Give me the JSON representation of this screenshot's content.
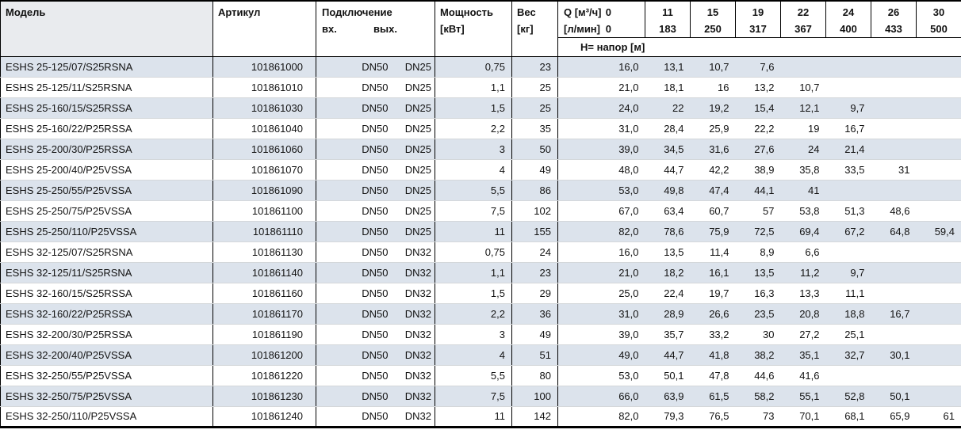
{
  "colors": {
    "row_shade": "#dce3ec",
    "header_model_shade": "#e9ebee",
    "row_line": "#d4d7da",
    "border": "#000000"
  },
  "table": {
    "columns": {
      "model": "Модель",
      "article": "Артикул",
      "connection": "Подключение",
      "inlet": "вх.",
      "outlet": "вых.",
      "power_l1": "Мощность",
      "power_l2": "[кВт]",
      "weight_l1": "Вес",
      "weight_l2": "[кг]",
      "q_m3h_label": "Q [м³/ч]",
      "q_lmin_label": "[л/мин]",
      "q_zero": "0",
      "head_row_label": "Н= напор [м]",
      "q_m3h": [
        "11",
        "15",
        "19",
        "22",
        "24",
        "26",
        "30"
      ],
      "q_lmin": [
        "183",
        "250",
        "317",
        "367",
        "400",
        "433",
        "500"
      ]
    },
    "rows": [
      {
        "model": "ESHS 25-125/07/S25RSNA",
        "article": "101861000",
        "inlet": "DN50",
        "outlet": "DN25",
        "power": "0,75",
        "weight": "23",
        "head": [
          "16,0",
          "13,1",
          "10,7",
          "7,6",
          "",
          "",
          "",
          ""
        ]
      },
      {
        "model": "ESHS 25-125/11/S25RSNA",
        "article": "101861010",
        "inlet": "DN50",
        "outlet": "DN25",
        "power": "1,1",
        "weight": "25",
        "head": [
          "21,0",
          "18,1",
          "16",
          "13,2",
          "10,7",
          "",
          "",
          ""
        ]
      },
      {
        "model": "ESHS 25-160/15/S25RSSA",
        "article": "101861030",
        "inlet": "DN50",
        "outlet": "DN25",
        "power": "1,5",
        "weight": "25",
        "head": [
          "24,0",
          "22",
          "19,2",
          "15,4",
          "12,1",
          "9,7",
          "",
          ""
        ]
      },
      {
        "model": "ESHS 25-160/22/P25RSSA",
        "article": "101861040",
        "inlet": "DN50",
        "outlet": "DN25",
        "power": "2,2",
        "weight": "35",
        "head": [
          "31,0",
          "28,4",
          "25,9",
          "22,2",
          "19",
          "16,7",
          "",
          ""
        ]
      },
      {
        "model": "ESHS 25-200/30/P25RSSA",
        "article": "101861060",
        "inlet": "DN50",
        "outlet": "DN25",
        "power": "3",
        "weight": "50",
        "head": [
          "39,0",
          "34,5",
          "31,6",
          "27,6",
          "24",
          "21,4",
          "",
          ""
        ]
      },
      {
        "model": "ESHS 25-200/40/P25VSSA",
        "article": "101861070",
        "inlet": "DN50",
        "outlet": "DN25",
        "power": "4",
        "weight": "49",
        "head": [
          "48,0",
          "44,7",
          "42,2",
          "38,9",
          "35,8",
          "33,5",
          "31",
          ""
        ]
      },
      {
        "model": "ESHS 25-250/55/P25VSSA",
        "article": "101861090",
        "inlet": "DN50",
        "outlet": "DN25",
        "power": "5,5",
        "weight": "86",
        "head": [
          "53,0",
          "49,8",
          "47,4",
          "44,1",
          "41",
          "",
          "",
          ""
        ]
      },
      {
        "model": "ESHS 25-250/75/P25VSSA",
        "article": "101861100",
        "inlet": "DN50",
        "outlet": "DN25",
        "power": "7,5",
        "weight": "102",
        "head": [
          "67,0",
          "63,4",
          "60,7",
          "57",
          "53,8",
          "51,3",
          "48,6",
          ""
        ]
      },
      {
        "model": "ESHS 25-250/110/P25VSSA",
        "article": "101861110",
        "inlet": "DN50",
        "outlet": "DN25",
        "power": "11",
        "weight": "155",
        "head": [
          "82,0",
          "78,6",
          "75,9",
          "72,5",
          "69,4",
          "67,2",
          "64,8",
          "59,4"
        ]
      },
      {
        "model": "ESHS 32-125/07/S25RSNA",
        "article": "101861130",
        "inlet": "DN50",
        "outlet": "DN32",
        "power": "0,75",
        "weight": "24",
        "head": [
          "16,0",
          "13,5",
          "11,4",
          "8,9",
          "6,6",
          "",
          "",
          ""
        ]
      },
      {
        "model": "ESHS 32-125/11/S25RSNA",
        "article": "101861140",
        "inlet": "DN50",
        "outlet": "DN32",
        "power": "1,1",
        "weight": "23",
        "head": [
          "21,0",
          "18,2",
          "16,1",
          "13,5",
          "11,2",
          "9,7",
          "",
          ""
        ]
      },
      {
        "model": "ESHS 32-160/15/S25RSSA",
        "article": "101861160",
        "inlet": "DN50",
        "outlet": "DN32",
        "power": "1,5",
        "weight": "29",
        "head": [
          "25,0",
          "22,4",
          "19,7",
          "16,3",
          "13,3",
          "11,1",
          "",
          ""
        ]
      },
      {
        "model": "ESHS 32-160/22/P25RSSA",
        "article": "101861170",
        "inlet": "DN50",
        "outlet": "DN32",
        "power": "2,2",
        "weight": "36",
        "head": [
          "31,0",
          "28,9",
          "26,6",
          "23,5",
          "20,8",
          "18,8",
          "16,7",
          ""
        ]
      },
      {
        "model": "ESHS 32-200/30/P25RSSA",
        "article": "101861190",
        "inlet": "DN50",
        "outlet": "DN32",
        "power": "3",
        "weight": "49",
        "head": [
          "39,0",
          "35,7",
          "33,2",
          "30",
          "27,2",
          "25,1",
          "",
          ""
        ]
      },
      {
        "model": "ESHS 32-200/40/P25VSSA",
        "article": "101861200",
        "inlet": "DN50",
        "outlet": "DN32",
        "power": "4",
        "weight": "51",
        "head": [
          "49,0",
          "44,7",
          "41,8",
          "38,2",
          "35,1",
          "32,7",
          "30,1",
          ""
        ]
      },
      {
        "model": "ESHS 32-250/55/P25VSSA",
        "article": "101861220",
        "inlet": "DN50",
        "outlet": "DN32",
        "power": "5,5",
        "weight": "80",
        "head": [
          "53,0",
          "50,1",
          "47,8",
          "44,6",
          "41,6",
          "",
          "",
          ""
        ]
      },
      {
        "model": "ESHS 32-250/75/P25VSSA",
        "article": "101861230",
        "inlet": "DN50",
        "outlet": "DN32",
        "power": "7,5",
        "weight": "100",
        "head": [
          "66,0",
          "63,9",
          "61,5",
          "58,2",
          "55,1",
          "52,8",
          "50,1",
          ""
        ]
      },
      {
        "model": "ESHS 32-250/110/P25VSSA",
        "article": "101861240",
        "inlet": "DN50",
        "outlet": "DN32",
        "power": "11",
        "weight": "142",
        "head": [
          "82,0",
          "79,3",
          "76,5",
          "73",
          "70,1",
          "68,1",
          "65,9",
          "61"
        ]
      }
    ]
  }
}
